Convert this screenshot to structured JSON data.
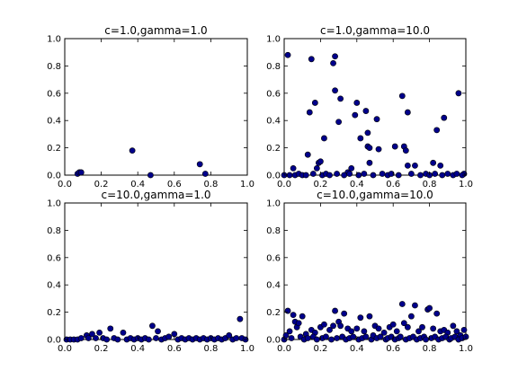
{
  "figure": {
    "point_color": "#00008b",
    "edge_color": "#000000"
  },
  "chart_data": [
    {
      "type": "scatter",
      "title": "c=1.0,gamma=1.0",
      "xlim": [
        0,
        1
      ],
      "ylim": [
        0,
        1
      ],
      "xticks": [
        "0.0",
        "0.2",
        "0.4",
        "0.6",
        "0.8",
        "1.0"
      ],
      "yticks": [
        "0.0",
        "0.2",
        "0.4",
        "0.6",
        "0.8",
        "1.0"
      ],
      "points": [
        [
          0.07,
          0.01
        ],
        [
          0.08,
          0.02
        ],
        [
          0.09,
          0.02
        ],
        [
          0.37,
          0.18
        ],
        [
          0.47,
          0.0
        ],
        [
          0.74,
          0.08
        ],
        [
          0.77,
          0.01
        ]
      ]
    },
    {
      "type": "scatter",
      "title": "c=1.0,gamma=10.0",
      "xlim": [
        0,
        1
      ],
      "ylim": [
        0,
        1
      ],
      "xticks": [
        "0.0",
        "0.2",
        "0.4",
        "0.6",
        "0.8",
        "1.0"
      ],
      "yticks": [
        "0.0",
        "0.2",
        "0.4",
        "0.6",
        "0.8",
        "1.0"
      ],
      "points": [
        [
          0.02,
          0.88
        ],
        [
          0.05,
          0.05
        ],
        [
          0.13,
          0.15
        ],
        [
          0.14,
          0.46
        ],
        [
          0.15,
          0.85
        ],
        [
          0.17,
          0.53
        ],
        [
          0.18,
          0.05
        ],
        [
          0.19,
          0.09
        ],
        [
          0.2,
          0.1
        ],
        [
          0.22,
          0.27
        ],
        [
          0.27,
          0.82
        ],
        [
          0.28,
          0.87
        ],
        [
          0.28,
          0.62
        ],
        [
          0.3,
          0.39
        ],
        [
          0.31,
          0.56
        ],
        [
          0.35,
          0.02
        ],
        [
          0.37,
          0.05
        ],
        [
          0.39,
          0.44
        ],
        [
          0.4,
          0.53
        ],
        [
          0.42,
          0.27
        ],
        [
          0.45,
          0.47
        ],
        [
          0.46,
          0.31
        ],
        [
          0.46,
          0.21
        ],
        [
          0.47,
          0.2
        ],
        [
          0.47,
          0.09
        ],
        [
          0.51,
          0.41
        ],
        [
          0.52,
          0.19
        ],
        [
          0.61,
          0.21
        ],
        [
          0.65,
          0.58
        ],
        [
          0.66,
          0.21
        ],
        [
          0.67,
          0.18
        ],
        [
          0.68,
          0.46
        ],
        [
          0.68,
          0.07
        ],
        [
          0.72,
          0.07
        ],
        [
          0.82,
          0.09
        ],
        [
          0.84,
          0.33
        ],
        [
          0.86,
          0.07
        ],
        [
          0.88,
          0.42
        ],
        [
          0.96,
          0.6
        ],
        [
          0.99,
          0.01
        ],
        [
          0.0,
          0.0
        ],
        [
          0.03,
          0.0
        ],
        [
          0.06,
          0.0
        ],
        [
          0.08,
          0.01
        ],
        [
          0.1,
          0.0
        ],
        [
          0.12,
          0.0
        ],
        [
          0.16,
          0.01
        ],
        [
          0.21,
          0.0
        ],
        [
          0.23,
          0.01
        ],
        [
          0.25,
          0.0
        ],
        [
          0.29,
          0.01
        ],
        [
          0.33,
          0.0
        ],
        [
          0.36,
          0.01
        ],
        [
          0.41,
          0.0
        ],
        [
          0.44,
          0.01
        ],
        [
          0.49,
          0.0
        ],
        [
          0.54,
          0.01
        ],
        [
          0.57,
          0.0
        ],
        [
          0.59,
          0.01
        ],
        [
          0.63,
          0.0
        ],
        [
          0.7,
          0.01
        ],
        [
          0.75,
          0.0
        ],
        [
          0.78,
          0.01
        ],
        [
          0.8,
          0.0
        ],
        [
          0.83,
          0.01
        ],
        [
          0.87,
          0.0
        ],
        [
          0.9,
          0.01
        ],
        [
          0.93,
          0.0
        ],
        [
          0.95,
          0.01
        ],
        [
          0.98,
          0.0
        ]
      ]
    },
    {
      "type": "scatter",
      "title": "c=10.0,gamma=1.0",
      "xlim": [
        0,
        1
      ],
      "ylim": [
        0,
        1
      ],
      "xticks": [
        "0.0",
        "0.2",
        "0.4",
        "0.6",
        "0.8",
        "1.0"
      ],
      "yticks": [
        "0.0",
        "0.2",
        "0.4",
        "0.6",
        "0.8",
        "1.0"
      ],
      "points": [
        [
          0.01,
          0.0
        ],
        [
          0.03,
          0.0
        ],
        [
          0.05,
          0.0
        ],
        [
          0.07,
          0.0
        ],
        [
          0.09,
          0.01
        ],
        [
          0.12,
          0.03
        ],
        [
          0.13,
          0.01
        ],
        [
          0.15,
          0.04
        ],
        [
          0.17,
          0.01
        ],
        [
          0.19,
          0.05
        ],
        [
          0.21,
          0.01
        ],
        [
          0.23,
          0.0
        ],
        [
          0.25,
          0.08
        ],
        [
          0.27,
          0.01
        ],
        [
          0.29,
          0.0
        ],
        [
          0.32,
          0.05
        ],
        [
          0.34,
          0.0
        ],
        [
          0.36,
          0.01
        ],
        [
          0.38,
          0.0
        ],
        [
          0.4,
          0.01
        ],
        [
          0.42,
          0.0
        ],
        [
          0.44,
          0.01
        ],
        [
          0.46,
          0.0
        ],
        [
          0.48,
          0.1
        ],
        [
          0.5,
          0.01
        ],
        [
          0.51,
          0.06
        ],
        [
          0.53,
          0.0
        ],
        [
          0.55,
          0.01
        ],
        [
          0.57,
          0.02
        ],
        [
          0.6,
          0.04
        ],
        [
          0.62,
          0.0
        ],
        [
          0.64,
          0.01
        ],
        [
          0.66,
          0.0
        ],
        [
          0.68,
          0.01
        ],
        [
          0.7,
          0.0
        ],
        [
          0.72,
          0.01
        ],
        [
          0.74,
          0.0
        ],
        [
          0.76,
          0.01
        ],
        [
          0.78,
          0.0
        ],
        [
          0.8,
          0.01
        ],
        [
          0.82,
          0.0
        ],
        [
          0.84,
          0.01
        ],
        [
          0.86,
          0.0
        ],
        [
          0.88,
          0.01
        ],
        [
          0.9,
          0.03
        ],
        [
          0.92,
          0.0
        ],
        [
          0.94,
          0.01
        ],
        [
          0.96,
          0.15
        ],
        [
          0.97,
          0.01
        ],
        [
          0.99,
          0.0
        ]
      ]
    },
    {
      "type": "scatter",
      "title": "c=10.0,gamma=10.0",
      "xlim": [
        0,
        1
      ],
      "ylim": [
        0,
        1
      ],
      "xticks": [
        "0.0",
        "0.2",
        "0.4",
        "0.6",
        "0.8",
        "1.0"
      ],
      "yticks": [
        "0.0",
        "0.2",
        "0.4",
        "0.6",
        "0.8",
        "1.0"
      ],
      "points": [
        [
          0.02,
          0.21
        ],
        [
          0.03,
          0.06
        ],
        [
          0.05,
          0.18
        ],
        [
          0.06,
          0.13
        ],
        [
          0.07,
          0.09
        ],
        [
          0.08,
          0.12
        ],
        [
          0.1,
          0.17
        ],
        [
          0.12,
          0.04
        ],
        [
          0.15,
          0.07
        ],
        [
          0.17,
          0.05
        ],
        [
          0.2,
          0.09
        ],
        [
          0.22,
          0.11
        ],
        [
          0.25,
          0.07
        ],
        [
          0.27,
          0.1
        ],
        [
          0.28,
          0.21
        ],
        [
          0.3,
          0.13
        ],
        [
          0.31,
          0.1
        ],
        [
          0.33,
          0.19
        ],
        [
          0.35,
          0.08
        ],
        [
          0.37,
          0.06
        ],
        [
          0.4,
          0.08
        ],
        [
          0.42,
          0.16
        ],
        [
          0.44,
          0.06
        ],
        [
          0.47,
          0.17
        ],
        [
          0.5,
          0.1
        ],
        [
          0.52,
          0.08
        ],
        [
          0.55,
          0.05
        ],
        [
          0.58,
          0.09
        ],
        [
          0.6,
          0.11
        ],
        [
          0.62,
          0.06
        ],
        [
          0.65,
          0.26
        ],
        [
          0.66,
          0.12
        ],
        [
          0.68,
          0.09
        ],
        [
          0.7,
          0.17
        ],
        [
          0.72,
          0.25
        ],
        [
          0.74,
          0.06
        ],
        [
          0.76,
          0.09
        ],
        [
          0.79,
          0.22
        ],
        [
          0.8,
          0.23
        ],
        [
          0.82,
          0.08
        ],
        [
          0.84,
          0.19
        ],
        [
          0.86,
          0.06
        ],
        [
          0.88,
          0.07
        ],
        [
          0.9,
          0.05
        ],
        [
          0.93,
          0.1
        ],
        [
          0.95,
          0.06
        ],
        [
          0.97,
          0.03
        ],
        [
          0.99,
          0.07
        ],
        [
          0.0,
          0.0
        ],
        [
          0.01,
          0.03
        ],
        [
          0.04,
          0.01
        ],
        [
          0.09,
          0.02
        ],
        [
          0.11,
          0.0
        ],
        [
          0.13,
          0.01
        ],
        [
          0.16,
          0.02
        ],
        [
          0.18,
          0.0
        ],
        [
          0.21,
          0.01
        ],
        [
          0.23,
          0.02
        ],
        [
          0.26,
          0.0
        ],
        [
          0.29,
          0.01
        ],
        [
          0.32,
          0.02
        ],
        [
          0.34,
          0.0
        ],
        [
          0.36,
          0.01
        ],
        [
          0.38,
          0.02
        ],
        [
          0.41,
          0.0
        ],
        [
          0.43,
          0.01
        ],
        [
          0.45,
          0.02
        ],
        [
          0.48,
          0.0
        ],
        [
          0.49,
          0.03
        ],
        [
          0.51,
          0.01
        ],
        [
          0.53,
          0.02
        ],
        [
          0.56,
          0.0
        ],
        [
          0.57,
          0.01
        ],
        [
          0.59,
          0.02
        ],
        [
          0.61,
          0.0
        ],
        [
          0.63,
          0.01
        ],
        [
          0.64,
          0.02
        ],
        [
          0.67,
          0.0
        ],
        [
          0.69,
          0.01
        ],
        [
          0.71,
          0.02
        ],
        [
          0.73,
          0.0
        ],
        [
          0.75,
          0.01
        ],
        [
          0.77,
          0.02
        ],
        [
          0.78,
          0.0
        ],
        [
          0.81,
          0.01
        ],
        [
          0.83,
          0.02
        ],
        [
          0.85,
          0.0
        ],
        [
          0.87,
          0.01
        ],
        [
          0.89,
          0.02
        ],
        [
          0.91,
          0.0
        ],
        [
          0.92,
          0.01
        ],
        [
          0.94,
          0.02
        ],
        [
          0.96,
          0.0
        ],
        [
          0.98,
          0.01
        ],
        [
          1.0,
          0.02
        ]
      ]
    }
  ]
}
